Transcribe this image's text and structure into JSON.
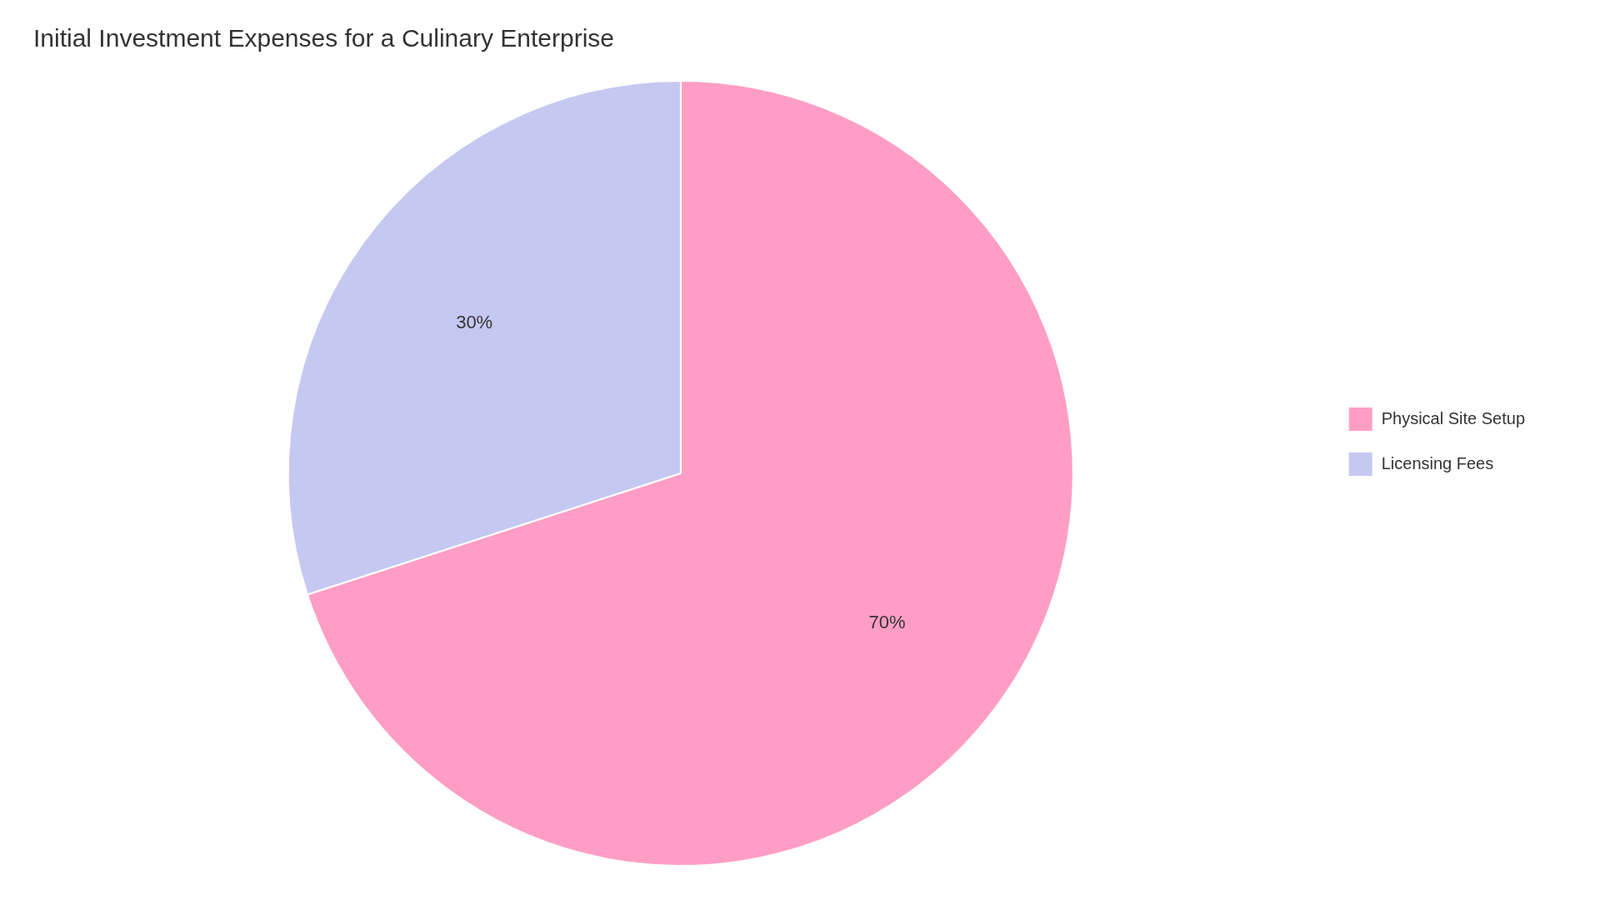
{
  "chart_data": {
    "type": "pie",
    "title": "Initial Investment Expenses for a Culinary Enterprise",
    "categories": [
      "Physical Site Setup",
      "Licensing Fees"
    ],
    "values": [
      70,
      30
    ],
    "value_labels": [
      "70%",
      "30%"
    ],
    "colors": [
      "#FF9EC4",
      "#C5C8F0"
    ],
    "data_labels": true,
    "legend": "right"
  }
}
